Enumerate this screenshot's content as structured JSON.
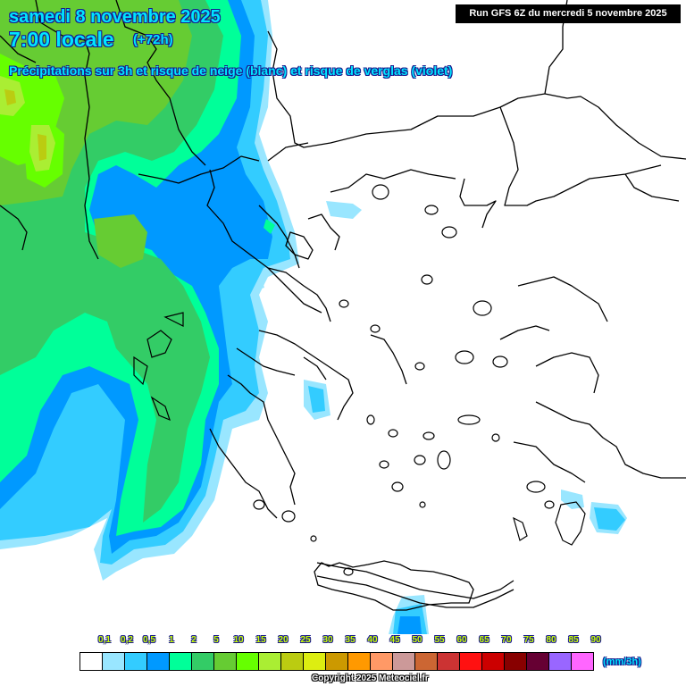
{
  "header": {
    "date": "samedi 8 novembre 2025",
    "time": "7:00 locale",
    "offset": "(+72h)",
    "subtitle": "Précipitations sur 3h et risque de neige (blanc) et risque de verglas (violet)",
    "run": "Run GFS 6Z du mercredi 5 novembre 2025"
  },
  "legend": {
    "unit": "(mm/3h)",
    "ticks": [
      "0,1",
      "0,2",
      "0,5",
      "1",
      "2",
      "5",
      "10",
      "15",
      "20",
      "25",
      "30",
      "35",
      "40",
      "45",
      "50",
      "55",
      "60",
      "65",
      "70",
      "75",
      "80",
      "85",
      "90"
    ],
    "colors": [
      "#ffffff",
      "#99e6ff",
      "#33ccff",
      "#0099ff",
      "#00ff99",
      "#33cc66",
      "#66cc33",
      "#66ff00",
      "#aaee33",
      "#bbcc11",
      "#ddee11",
      "#cc9900",
      "#ff9900",
      "#ff9966",
      "#cc9999",
      "#cc6633",
      "#cc3333",
      "#ff1111",
      "#cc0000",
      "#880000",
      "#660033",
      "#9966ff",
      "#ff66ff"
    ]
  },
  "footer": {
    "copyright": "Copyright 2025 Meteociel.fr"
  },
  "map": {
    "region": "Greece / Balkans / Aegean",
    "palette": {
      "p01": "#99e6ff",
      "p02": "#33ccff",
      "p05": "#0099ff",
      "p1": "#00ff99",
      "p2": "#33cc66",
      "p5": "#66cc33",
      "p10": "#66ff00",
      "p15": "#aaee33",
      "p20": "#bbcc11",
      "coast": "#000000"
    }
  }
}
